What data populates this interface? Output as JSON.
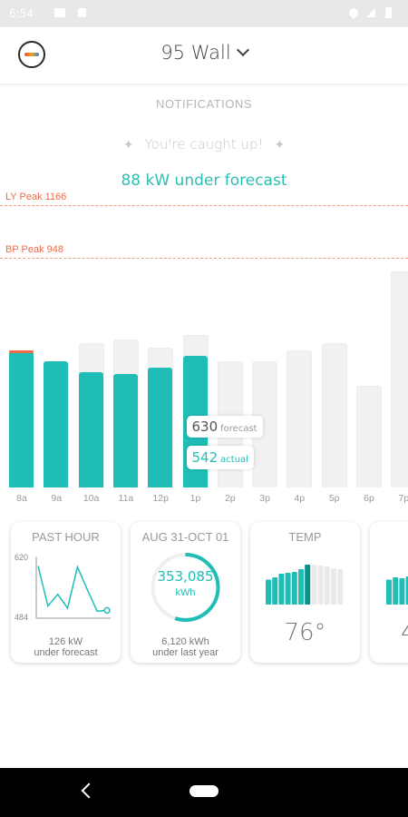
{
  "status_bar": {
    "time": "6:54"
  },
  "header": {
    "title": "95 Wall"
  },
  "notifications": {
    "title": "NOTIFICATIONS",
    "caught_up": "You're caught up!",
    "forecast_message": "88 kW under forecast"
  },
  "chart_data": {
    "type": "bar",
    "categories": [
      "8a",
      "9a",
      "10a",
      "11a",
      "12p",
      "1p",
      "2p",
      "3p",
      "4p",
      "5p",
      "6p",
      "7p"
    ],
    "series": [
      {
        "name": "forecast",
        "values": [
          null,
          520,
          595,
          610,
          575,
          630,
          520,
          520,
          565,
          595,
          420,
          890
        ]
      },
      {
        "name": "actual",
        "values": [
          560,
          520,
          475,
          470,
          495,
          542,
          null,
          null,
          null,
          null,
          null,
          null
        ]
      }
    ],
    "reference_lines": [
      {
        "label": "LY Peak 1166",
        "value": 1166
      },
      {
        "label": "BP Peak 948",
        "value": 948
      }
    ],
    "tooltip": {
      "forecast_value": "630",
      "forecast_label": "forecast",
      "actual_value": "542",
      "actual_label": "actual"
    }
  },
  "cards": [
    {
      "title": "PAST HOUR",
      "y_max": "620",
      "y_min": "484",
      "footer_line1": "126 kW",
      "footer_line2": "under forecast",
      "sparkline": [
        602,
        510,
        537,
        505,
        600,
        548,
        498,
        500
      ]
    },
    {
      "title": "AUG 31-OCT 01",
      "ring_value": "353,085",
      "ring_unit": "kWh",
      "ring_fraction": 0.55,
      "footer_line1": "6,120 kWh",
      "footer_line2": "under last year"
    },
    {
      "title": "TEMP",
      "temp_value": "76°",
      "bars": [
        0.55,
        0.6,
        0.68,
        0.7,
        0.72,
        0.78,
        0.88,
        0.88,
        0.86,
        0.84,
        0.8,
        0.78
      ]
    },
    {
      "title": "",
      "value_partial": "4"
    }
  ],
  "colors": {
    "accent": "#1fbdb5",
    "peak": "#ee6a4a",
    "track": "#f1f1f1"
  }
}
